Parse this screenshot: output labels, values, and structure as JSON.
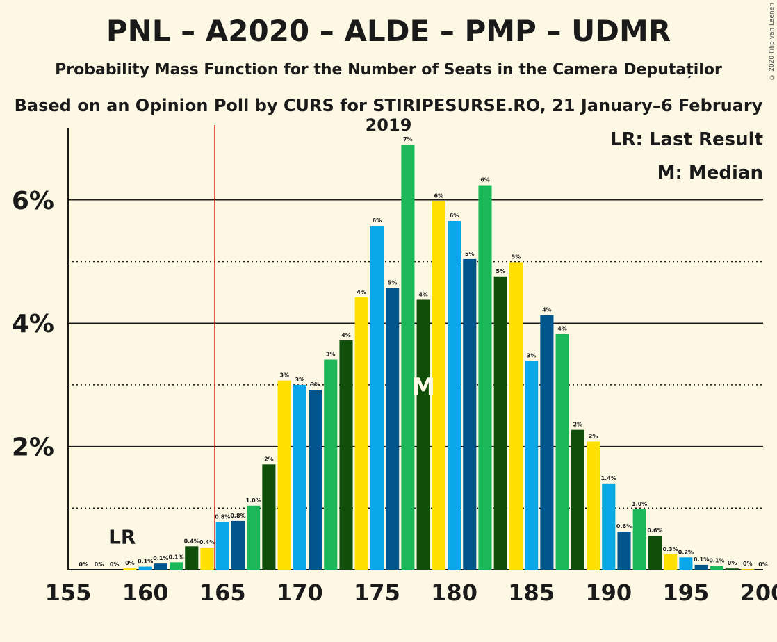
{
  "title": "PNL – A2020 – ALDE – PMP – UDMR",
  "subtitle": "Probability Mass Function for the Number of Seats in the Camera Deputaților",
  "source": "Based on an Opinion Poll by CURS for STIRIPESURSE.RO, 21 January–6 February 2019",
  "copyright": "© 2020 Filip van Laenen",
  "legend": {
    "lr": "LR: Last Result",
    "m": "M: Median"
  },
  "markers": {
    "lr_label": "LR",
    "lr_seat": 165,
    "median_label": "M",
    "median_seat": 178
  },
  "colors": {
    "background": "#fdf8e4",
    "last_result_line": "#cc0000",
    "cycle": [
      "#0aa8e8",
      "#00558c",
      "#1bb85a",
      "#0f4f0a",
      "#ffe000"
    ]
  },
  "chart_data": {
    "type": "bar",
    "xlabel": "",
    "ylabel": "",
    "xlim": [
      155,
      200
    ],
    "ylim": [
      0,
      7.5
    ],
    "x_ticks": [
      155,
      160,
      165,
      170,
      175,
      180,
      185,
      190,
      195,
      200
    ],
    "y_ticks_major": [
      2,
      4,
      6
    ],
    "y_tick_labels": [
      "2%",
      "4%",
      "6%"
    ],
    "y_ticks_minor": [
      1,
      3,
      5
    ],
    "categories": [
      156,
      157,
      158,
      159,
      160,
      161,
      162,
      163,
      164,
      165,
      166,
      167,
      168,
      169,
      170,
      171,
      172,
      173,
      174,
      175,
      176,
      177,
      178,
      179,
      180,
      181,
      182,
      183,
      184,
      185,
      186,
      187,
      188,
      189,
      190,
      191,
      192,
      193,
      194,
      195,
      196,
      197,
      198,
      199,
      200
    ],
    "values": [
      0,
      0,
      0,
      0.02,
      0.05,
      0.1,
      0.12,
      0.38,
      0.36,
      0.77,
      0.79,
      1.04,
      1.71,
      3.07,
      3.0,
      2.92,
      3.41,
      3.72,
      4.42,
      5.58,
      4.57,
      6.9,
      4.38,
      5.98,
      5.66,
      5.04,
      6.24,
      4.76,
      4.99,
      3.39,
      4.13,
      3.83,
      2.27,
      2.08,
      1.4,
      0.62,
      0.98,
      0.55,
      0.25,
      0.2,
      0.08,
      0.06,
      0.02,
      0.01,
      0
    ],
    "labels": [
      "0%",
      "0%",
      "0%",
      "0%",
      "0.1%",
      "0.1%",
      "0.1%",
      "0.4%",
      "0.4%",
      "0.8%",
      "0.8%",
      "1.0%",
      "2%",
      "3%",
      "3%",
      "3%",
      "3%",
      "4%",
      "4%",
      "6%",
      "5%",
      "7%",
      "4%",
      "6%",
      "6%",
      "5%",
      "6%",
      "5%",
      "5%",
      "3%",
      "4%",
      "4%",
      "2%",
      "2%",
      "1.4%",
      "0.6%",
      "1.0%",
      "0.6%",
      "0.3%",
      "0.2%",
      "0.1%",
      "0.1%",
      "0%",
      "0%",
      "0%"
    ]
  }
}
